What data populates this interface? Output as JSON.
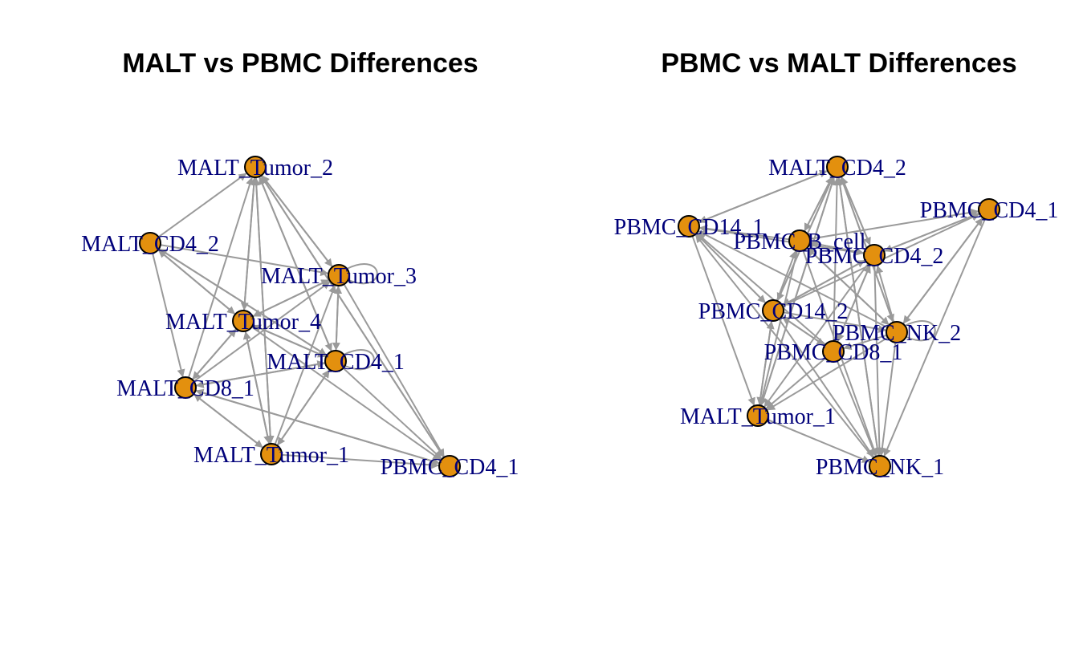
{
  "style": {
    "edge_color": "#9a9a9a",
    "node_fill": "#e3900e",
    "node_stroke": "#000000",
    "label_color": "#00007a",
    "title_color": "#000000"
  },
  "panels": [
    {
      "id": "malt",
      "title": "MALT vs PBMC Differences",
      "nodes": [
        {
          "id": "MALT_Tumor_2",
          "label": "MALT_Tumor_2"
        },
        {
          "id": "MALT_CD4_2",
          "label": "MALT_CD4_2"
        },
        {
          "id": "MALT_Tumor_3",
          "label": "MALT_Tumor_3"
        },
        {
          "id": "MALT_Tumor_4",
          "label": "MALT_Tumor_4"
        },
        {
          "id": "MALT_CD4_1",
          "label": "MALT_CD4_1"
        },
        {
          "id": "MALT_CD8_1",
          "label": "MALT_CD8_1"
        },
        {
          "id": "MALT_Tumor_1",
          "label": "MALT_Tumor_1"
        },
        {
          "id": "PBMC_CD4_1",
          "label": "PBMC_CD4_1"
        }
      ],
      "edges": [
        [
          "MALT_CD4_2",
          "MALT_Tumor_2"
        ],
        [
          "MALT_Tumor_4",
          "MALT_Tumor_2"
        ],
        [
          "MALT_Tumor_3",
          "MALT_Tumor_2"
        ],
        [
          "MALT_CD4_1",
          "MALT_Tumor_2"
        ],
        [
          "MALT_CD8_1",
          "MALT_Tumor_2"
        ],
        [
          "MALT_Tumor_1",
          "MALT_Tumor_2"
        ],
        [
          "PBMC_CD4_1",
          "MALT_Tumor_2"
        ],
        [
          "MALT_Tumor_4",
          "MALT_CD4_2"
        ],
        [
          "MALT_CD4_1",
          "MALT_CD4_2"
        ],
        [
          "MALT_Tumor_2",
          "MALT_Tumor_3"
        ],
        [
          "MALT_CD4_2",
          "MALT_Tumor_3"
        ],
        [
          "MALT_Tumor_4",
          "MALT_Tumor_3"
        ],
        [
          "MALT_CD4_1",
          "MALT_Tumor_3"
        ],
        [
          "MALT_CD8_1",
          "MALT_Tumor_3"
        ],
        [
          "MALT_Tumor_1",
          "MALT_Tumor_3"
        ],
        [
          "MALT_Tumor_2",
          "MALT_Tumor_4"
        ],
        [
          "MALT_CD4_2",
          "MALT_Tumor_4"
        ],
        [
          "MALT_Tumor_3",
          "MALT_Tumor_4"
        ],
        [
          "MALT_CD8_1",
          "MALT_Tumor_4"
        ],
        [
          "MALT_Tumor_1",
          "MALT_Tumor_4"
        ],
        [
          "MALT_CD4_1",
          "MALT_Tumor_4"
        ],
        [
          "MALT_Tumor_2",
          "MALT_CD4_1"
        ],
        [
          "MALT_CD4_2",
          "MALT_CD4_1"
        ],
        [
          "MALT_Tumor_3",
          "MALT_CD4_1"
        ],
        [
          "MALT_Tumor_4",
          "MALT_CD4_1"
        ],
        [
          "MALT_CD8_1",
          "MALT_CD4_1"
        ],
        [
          "MALT_Tumor_1",
          "MALT_CD4_1"
        ],
        [
          "MALT_CD4_2",
          "MALT_CD8_1"
        ],
        [
          "MALT_Tumor_4",
          "MALT_CD8_1"
        ],
        [
          "MALT_Tumor_1",
          "MALT_CD8_1"
        ],
        [
          "MALT_CD4_1",
          "MALT_CD8_1"
        ],
        [
          "PBMC_CD4_1",
          "MALT_CD8_1"
        ],
        [
          "MALT_Tumor_2",
          "MALT_Tumor_1"
        ],
        [
          "MALT_CD8_1",
          "MALT_Tumor_1"
        ],
        [
          "MALT_CD4_1",
          "MALT_Tumor_1"
        ],
        [
          "MALT_Tumor_4",
          "MALT_Tumor_1"
        ],
        [
          "MALT_Tumor_2",
          "PBMC_CD4_1"
        ],
        [
          "MALT_Tumor_3",
          "PBMC_CD4_1"
        ],
        [
          "MALT_CD4_1",
          "PBMC_CD4_1"
        ],
        [
          "MALT_Tumor_4",
          "PBMC_CD4_1"
        ],
        [
          "MALT_CD8_1",
          "PBMC_CD4_1"
        ],
        [
          "MALT_Tumor_1",
          "PBMC_CD4_1"
        ]
      ],
      "self_loops": [
        "MALT_Tumor_3",
        "MALT_CD4_1"
      ]
    },
    {
      "id": "pbmc",
      "title": "PBMC vs MALT Differences",
      "nodes": [
        {
          "id": "MALT_CD4_2",
          "label": "MALT_CD4_2"
        },
        {
          "id": "PBMC_CD4_1",
          "label": "PBMC_CD4_1"
        },
        {
          "id": "PBMC_CD14_1",
          "label": "PBMC_CD14_1"
        },
        {
          "id": "PBMC_B_cell",
          "label": "PBMC_B_cell"
        },
        {
          "id": "PBMC_CD4_2",
          "label": "PBMC_CD4_2"
        },
        {
          "id": "PBMC_CD14_2",
          "label": "PBMC_CD14_2"
        },
        {
          "id": "PBMC_NK_2",
          "label": "PBMC_NK_2"
        },
        {
          "id": "PBMC_CD8_1",
          "label": "PBMC_CD8_1"
        },
        {
          "id": "MALT_Tumor_1",
          "label": "MALT_Tumor_1"
        },
        {
          "id": "PBMC_NK_1",
          "label": "PBMC_NK_1"
        }
      ],
      "edges": [
        [
          "PBMC_CD14_1",
          "MALT_CD4_2"
        ],
        [
          "PBMC_B_cell",
          "MALT_CD4_2"
        ],
        [
          "PBMC_CD4_2",
          "MALT_CD4_2"
        ],
        [
          "PBMC_CD14_2",
          "MALT_CD4_2"
        ],
        [
          "PBMC_CD8_1",
          "MALT_CD4_2"
        ],
        [
          "PBMC_NK_2",
          "MALT_CD4_2"
        ],
        [
          "MALT_Tumor_1",
          "MALT_CD4_2"
        ],
        [
          "PBMC_NK_1",
          "MALT_CD4_2"
        ],
        [
          "PBMC_B_cell",
          "PBMC_CD4_1"
        ],
        [
          "PBMC_CD4_2",
          "PBMC_CD4_1"
        ],
        [
          "PBMC_NK_2",
          "PBMC_CD4_1"
        ],
        [
          "PBMC_CD14_2",
          "PBMC_CD4_1"
        ],
        [
          "MALT_CD4_2",
          "PBMC_CD14_1"
        ],
        [
          "PBMC_B_cell",
          "PBMC_CD14_1"
        ],
        [
          "PBMC_CD4_2",
          "PBMC_CD14_1"
        ],
        [
          "PBMC_CD14_2",
          "PBMC_CD14_1"
        ],
        [
          "PBMC_NK_2",
          "PBMC_CD14_1"
        ],
        [
          "PBMC_CD8_1",
          "PBMC_CD14_1"
        ],
        [
          "PBMC_NK_1",
          "PBMC_CD14_1"
        ],
        [
          "MALT_CD4_2",
          "PBMC_B_cell"
        ],
        [
          "PBMC_CD4_2",
          "PBMC_B_cell"
        ],
        [
          "PBMC_CD14_2",
          "PBMC_B_cell"
        ],
        [
          "PBMC_NK_2",
          "PBMC_B_cell"
        ],
        [
          "PBMC_CD4_1",
          "PBMC_CD4_2"
        ],
        [
          "MALT_CD4_2",
          "PBMC_CD4_2"
        ],
        [
          "PBMC_CD14_2",
          "PBMC_CD4_2"
        ],
        [
          "PBMC_NK_2",
          "PBMC_CD4_2"
        ],
        [
          "PBMC_CD8_1",
          "PBMC_CD4_2"
        ],
        [
          "PBMC_B_cell",
          "PBMC_CD4_2"
        ],
        [
          "MALT_CD4_2",
          "PBMC_CD14_2"
        ],
        [
          "PBMC_CD14_1",
          "PBMC_CD14_2"
        ],
        [
          "PBMC_CD4_2",
          "PBMC_CD14_2"
        ],
        [
          "PBMC_CD8_1",
          "PBMC_CD14_2"
        ],
        [
          "MALT_Tumor_1",
          "PBMC_CD14_2"
        ],
        [
          "PBMC_B_cell",
          "PBMC_NK_2"
        ],
        [
          "PBMC_CD14_2",
          "PBMC_NK_2"
        ],
        [
          "MALT_CD4_2",
          "PBMC_NK_2"
        ],
        [
          "PBMC_CD4_1",
          "PBMC_NK_2"
        ],
        [
          "PBMC_CD14_2",
          "PBMC_CD8_1"
        ],
        [
          "PBMC_CD4_2",
          "PBMC_CD8_1"
        ],
        [
          "PBMC_NK_2",
          "PBMC_CD8_1"
        ],
        [
          "PBMC_CD14_1",
          "MALT_Tumor_1"
        ],
        [
          "PBMC_CD14_2",
          "MALT_Tumor_1"
        ],
        [
          "PBMC_B_cell",
          "MALT_Tumor_1"
        ],
        [
          "PBMC_CD8_1",
          "MALT_Tumor_1"
        ],
        [
          "PBMC_CD4_2",
          "MALT_Tumor_1"
        ],
        [
          "PBMC_NK_2",
          "MALT_Tumor_1"
        ],
        [
          "MALT_CD4_2",
          "MALT_Tumor_1"
        ],
        [
          "MALT_Tumor_1",
          "PBMC_NK_1"
        ],
        [
          "PBMC_CD8_1",
          "PBMC_NK_1"
        ],
        [
          "PBMC_CD14_2",
          "PBMC_NK_1"
        ],
        [
          "PBMC_NK_2",
          "PBMC_NK_1"
        ],
        [
          "PBMC_CD4_2",
          "PBMC_NK_1"
        ],
        [
          "PBMC_CD4_1",
          "PBMC_NK_1"
        ],
        [
          "PBMC_B_cell",
          "PBMC_NK_1"
        ],
        [
          "MALT_CD4_2",
          "PBMC_NK_1"
        ]
      ],
      "self_loops": [
        "PBMC_NK_2"
      ]
    }
  ]
}
